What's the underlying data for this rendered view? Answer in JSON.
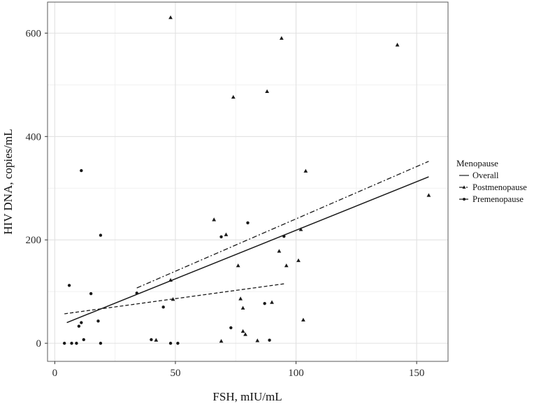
{
  "chart_data": {
    "type": "scatter",
    "title": "",
    "xlabel": "FSH, mIU/mL",
    "ylabel": "HIV DNA, copies/mL",
    "xlim": [
      -3,
      163
    ],
    "ylim": [
      -35,
      660
    ],
    "xticks": [
      "0",
      "50",
      "100",
      "150"
    ],
    "xtick_values": [
      0,
      50,
      100,
      150
    ],
    "yticks": [
      "0",
      "200",
      "400",
      "600"
    ],
    "ytick_values": [
      0,
      200,
      400,
      600
    ],
    "grid": true,
    "legend": {
      "title": "Menopause",
      "position": "right",
      "entries": [
        {
          "label": "Overall",
          "line": "solid",
          "marker": "none"
        },
        {
          "label": "Postmenopause",
          "line": "dashdot",
          "marker": "triangle"
        },
        {
          "label": "Premenopause",
          "line": "dashed",
          "marker": "circle"
        }
      ]
    },
    "series": [
      {
        "name": "Postmenopause",
        "marker": "triangle",
        "points": [
          [
            48,
            630
          ],
          [
            94,
            590
          ],
          [
            142,
            577
          ],
          [
            88,
            487
          ],
          [
            74,
            476
          ],
          [
            104,
            333
          ],
          [
            155,
            286
          ],
          [
            66,
            239
          ],
          [
            71,
            210
          ],
          [
            102,
            220
          ],
          [
            93,
            178
          ],
          [
            101,
            160
          ],
          [
            96,
            150
          ],
          [
            76,
            150
          ],
          [
            48,
            122
          ],
          [
            49,
            85
          ],
          [
            77,
            86
          ],
          [
            78,
            68
          ],
          [
            90,
            79
          ],
          [
            103,
            45
          ],
          [
            78,
            23
          ],
          [
            79,
            17
          ],
          [
            84,
            5
          ],
          [
            69,
            4
          ],
          [
            42,
            6
          ]
        ]
      },
      {
        "name": "Premenopause",
        "marker": "circle",
        "points": [
          [
            11,
            334
          ],
          [
            19,
            209
          ],
          [
            80,
            233
          ],
          [
            69,
            206
          ],
          [
            95,
            207
          ],
          [
            6,
            112
          ],
          [
            15,
            96
          ],
          [
            34,
            97
          ],
          [
            45,
            70
          ],
          [
            87,
            77
          ],
          [
            18,
            43
          ],
          [
            11,
            40
          ],
          [
            10,
            33
          ],
          [
            73,
            30
          ],
          [
            12,
            7
          ],
          [
            40,
            7
          ],
          [
            89,
            6
          ],
          [
            4,
            0
          ],
          [
            7,
            0
          ],
          [
            9,
            0
          ],
          [
            19,
            0
          ],
          [
            48,
            0
          ],
          [
            51,
            0
          ]
        ]
      }
    ],
    "fit_lines": [
      {
        "name": "Overall",
        "style": "solid",
        "x": [
          5,
          155
        ],
        "y": [
          40,
          322
        ]
      },
      {
        "name": "Postmenopause",
        "style": "dashdot",
        "x": [
          34,
          155
        ],
        "y": [
          107,
          352
        ]
      },
      {
        "name": "Premenopause",
        "style": "dashed",
        "x": [
          4,
          95
        ],
        "y": [
          57,
          115
        ]
      }
    ],
    "colors": {
      "frame": "#5a5a5a",
      "grid_major": "#e1e1e1",
      "grid_minor": "#f1f1f1",
      "marks": "#1a1a1a"
    }
  }
}
